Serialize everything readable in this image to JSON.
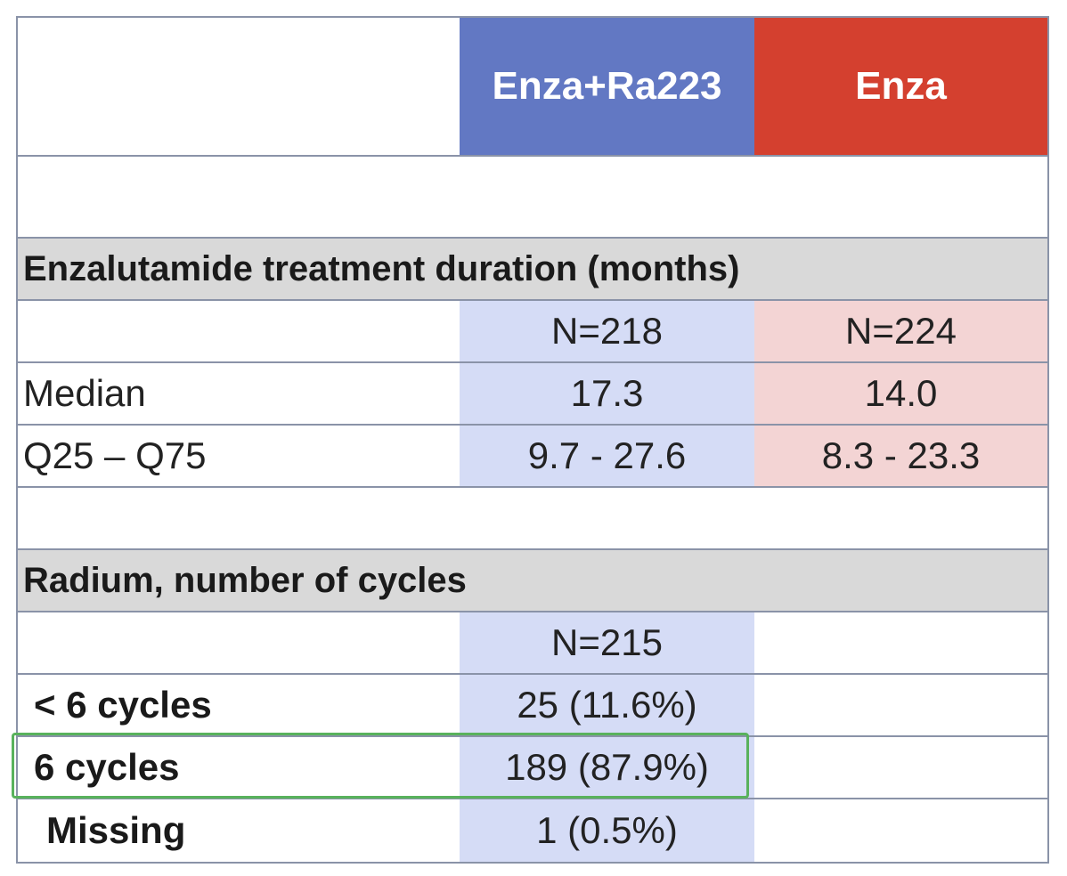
{
  "header": {
    "col_empty": "",
    "col_a": "Enza+Ra223",
    "col_b": "Enza"
  },
  "section_duration": {
    "title": "Enzalutamide treatment duration (months)",
    "n_row": {
      "label": "",
      "a": "N=218",
      "b": "N=224"
    },
    "rows": [
      {
        "label": "Median",
        "a": "17.3",
        "b": "14.0"
      },
      {
        "label": "Q25 – Q75",
        "a": "9.7 - 27.6",
        "b": "8.3 - 23.3"
      }
    ]
  },
  "section_radium": {
    "title": "Radium, number of cycles",
    "n_row": {
      "label": "",
      "a": "N=215",
      "b": ""
    },
    "rows": [
      {
        "label": "< 6 cycles",
        "a": "25 (11.6%)",
        "b": ""
      },
      {
        "label": "6 cycles",
        "a": "189 (87.9%)",
        "b": ""
      },
      {
        "label": "Missing",
        "a": "1 (0.5%)",
        "b": ""
      }
    ]
  },
  "colors": {
    "enza_ra223_header": "#6278c3",
    "enza_header": "#d4402f",
    "enza_ra223_fill": "#d5dcf6",
    "enza_fill": "#f3d4d4",
    "section_fill": "#d9d9d9",
    "highlight_border": "#59b25c"
  }
}
